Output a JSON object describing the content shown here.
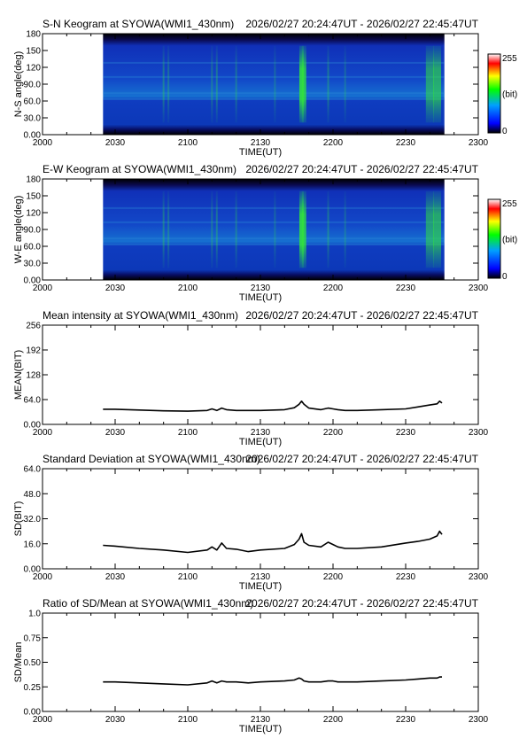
{
  "colors": {
    "axis": "#000000",
    "line": "#000000",
    "background": "#ffffff",
    "keogram_base": "#0a1f96"
  },
  "colorbar": {
    "max_label": "255",
    "unit_label": "(bit)",
    "min_label": "0",
    "colors": [
      "#000000",
      "#0000ff",
      "#00a0ff",
      "#00ff00",
      "#ffff00",
      "#ff0000",
      "#ffffff"
    ]
  },
  "chart_data": [
    {
      "type": "heatmap",
      "title": "S-N Keogram at SYOWA(WMI1_430nm)",
      "time_range": "2026/02/27 20:24:47UT - 2026/02/27 22:45:47UT",
      "xlabel": "TIME(UT)",
      "ylabel": "N-S angle(deg)",
      "x_ticks": [
        "2000",
        "2030",
        "2100",
        "2130",
        "2200",
        "2230",
        "2300"
      ],
      "y_ticks": [
        "0.00",
        "30.0",
        "60.0",
        "90.0",
        "120",
        "150",
        "180"
      ],
      "xlim": [
        0,
        180
      ],
      "ylim": [
        0,
        180
      ],
      "data_extent": [
        25,
        166
      ],
      "bright_columns": [
        [
          50,
          0.35
        ],
        [
          52,
          0.3
        ],
        [
          70,
          0.3
        ],
        [
          72,
          0.35
        ],
        [
          80,
          0.3
        ],
        [
          96,
          0.25
        ],
        [
          107,
          1.0
        ],
        [
          108,
          0.9
        ],
        [
          118,
          0.35
        ],
        [
          125,
          0.25
        ],
        [
          160,
          0.6
        ],
        [
          163,
          0.7
        ]
      ],
      "grid": false
    },
    {
      "type": "heatmap",
      "title": "E-W Keogram at SYOWA(WMI1_430nm)",
      "time_range": "2026/02/27 20:24:47UT - 2026/02/27 22:45:47UT",
      "xlabel": "TIME(UT)",
      "ylabel": "W-E angle(deg)",
      "x_ticks": [
        "2000",
        "2030",
        "2100",
        "2130",
        "2200",
        "2230",
        "2300"
      ],
      "y_ticks": [
        "0.00",
        "30.0",
        "60.0",
        "90.0",
        "120",
        "150",
        "180"
      ],
      "xlim": [
        0,
        180
      ],
      "ylim": [
        0,
        180
      ],
      "data_extent": [
        25,
        166
      ],
      "bright_columns": [
        [
          50,
          0.35
        ],
        [
          52,
          0.3
        ],
        [
          70,
          0.3
        ],
        [
          72,
          0.35
        ],
        [
          80,
          0.3
        ],
        [
          96,
          0.25
        ],
        [
          107,
          1.0
        ],
        [
          108,
          0.9
        ],
        [
          118,
          0.35
        ],
        [
          125,
          0.25
        ],
        [
          160,
          0.6
        ],
        [
          163,
          0.7
        ]
      ],
      "grid": false
    },
    {
      "type": "line",
      "title": "Mean intensity at SYOWA(WMI1_430nm)",
      "time_range": "2026/02/27 20:24:47UT - 2026/02/27 22:45:47UT",
      "xlabel": "TIME(UT)",
      "ylabel": "MEAN(BIT)",
      "x_ticks": [
        "2000",
        "2030",
        "2100",
        "2130",
        "2200",
        "2230",
        "2300"
      ],
      "y_ticks": [
        "0.00",
        "64.0",
        "128",
        "192",
        "256"
      ],
      "xlim": [
        0,
        180
      ],
      "ylim": [
        0,
        256
      ],
      "x": [
        25,
        30,
        40,
        50,
        60,
        68,
        70,
        72,
        74,
        76,
        80,
        85,
        90,
        100,
        104,
        106,
        107,
        108,
        110,
        115,
        118,
        120,
        122,
        125,
        130,
        140,
        150,
        155,
        160,
        163,
        164,
        165
      ],
      "values": [
        39,
        39,
        37,
        35,
        34,
        36,
        40,
        36,
        42,
        38,
        36,
        36,
        36,
        38,
        43,
        52,
        60,
        52,
        42,
        38,
        42,
        40,
        38,
        36,
        36,
        38,
        40,
        45,
        50,
        53,
        60,
        55
      ],
      "grid": false
    },
    {
      "type": "line",
      "title": "Standard Deviation at SYOWA(WMI1_430nm)",
      "time_range": "2026/02/27 20:24:47UT - 2026/02/27 22:45:47UT",
      "xlabel": "TIME(UT)",
      "ylabel": "SD(BIT)",
      "x_ticks": [
        "2000",
        "2030",
        "2100",
        "2130",
        "2200",
        "2230",
        "2300"
      ],
      "y_ticks": [
        "0.00",
        "16.0",
        "32.0",
        "48.0",
        "64.0"
      ],
      "xlim": [
        0,
        180
      ],
      "ylim": [
        0,
        64
      ],
      "x": [
        25,
        30,
        40,
        50,
        60,
        68,
        70,
        72,
        74,
        76,
        80,
        85,
        90,
        100,
        104,
        106,
        107,
        108,
        110,
        115,
        118,
        120,
        122,
        125,
        130,
        140,
        150,
        155,
        160,
        163,
        164,
        165
      ],
      "values": [
        15,
        14.5,
        13,
        12,
        10.5,
        12,
        14,
        12,
        16.5,
        13,
        12.5,
        11,
        12,
        13,
        15.5,
        19,
        22.5,
        17,
        15,
        14,
        17,
        15.5,
        14,
        13,
        13,
        14,
        16.5,
        17.5,
        19,
        21,
        24,
        22
      ],
      "grid": false
    },
    {
      "type": "line",
      "title": "Ratio of SD/Mean at SYOWA(WMI1_430nm)",
      "time_range": "2026/02/27 20:24:47UT - 2026/02/27 22:45:47UT",
      "xlabel": "TIME(UT)",
      "ylabel": "SD/Mean",
      "x_ticks": [
        "2000",
        "2030",
        "2100",
        "2130",
        "2200",
        "2230",
        "2300"
      ],
      "y_ticks": [
        "0.00",
        "0.25",
        "0.50",
        "0.75",
        "1.0"
      ],
      "xlim": [
        0,
        180
      ],
      "ylim": [
        0,
        1
      ],
      "x": [
        25,
        30,
        40,
        50,
        60,
        68,
        70,
        72,
        74,
        76,
        80,
        85,
        90,
        100,
        104,
        106,
        107,
        108,
        110,
        115,
        118,
        120,
        122,
        125,
        130,
        140,
        150,
        155,
        160,
        163,
        164,
        165
      ],
      "values": [
        0.3,
        0.3,
        0.29,
        0.28,
        0.27,
        0.29,
        0.31,
        0.29,
        0.31,
        0.3,
        0.3,
        0.29,
        0.3,
        0.31,
        0.32,
        0.34,
        0.33,
        0.31,
        0.3,
        0.3,
        0.31,
        0.31,
        0.3,
        0.3,
        0.3,
        0.31,
        0.32,
        0.33,
        0.34,
        0.34,
        0.35,
        0.35
      ],
      "grid": false
    }
  ]
}
